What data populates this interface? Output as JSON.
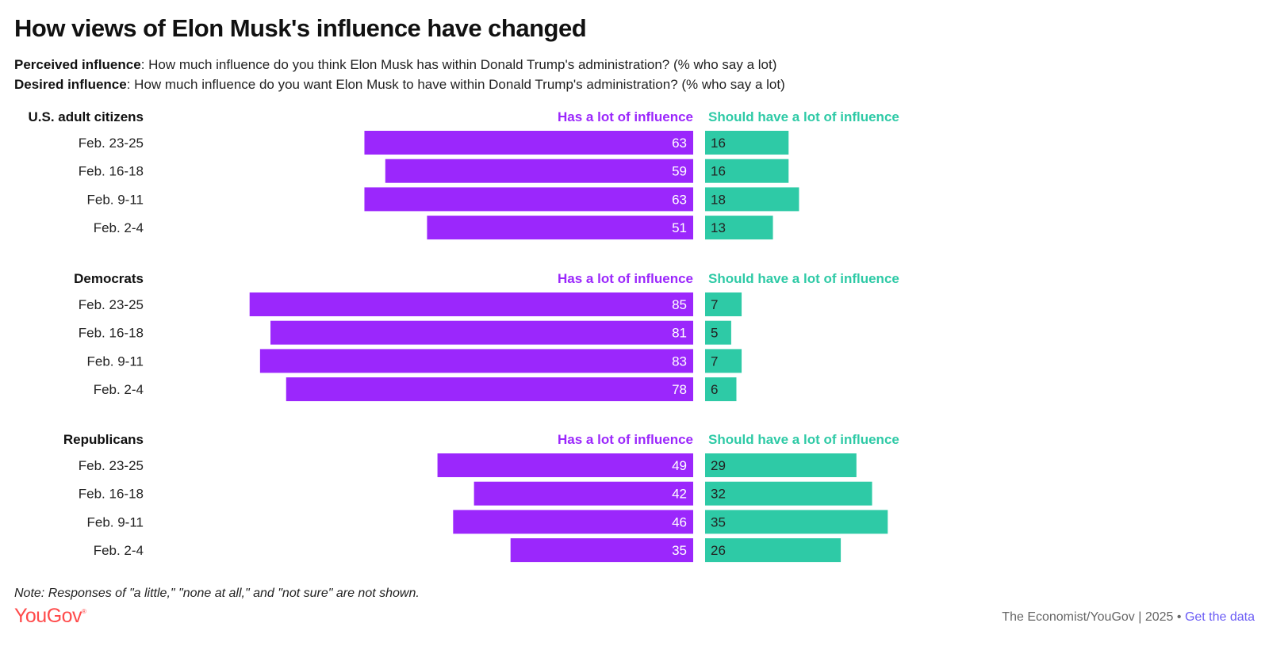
{
  "title": "How views of Elon Musk's influence have changed",
  "subtitle": {
    "perceived_label": "Perceived influence",
    "perceived_text": ": How much influence do you think Elon Musk has within Donald Trump's administration? (% who say a lot)",
    "desired_label": "Desired influence",
    "desired_text": ": How much influence do you want Elon Musk to have within Donald Trump's administration? (% who say a lot)"
  },
  "colors": {
    "has": "#9b27fc",
    "should": "#2ecaa6"
  },
  "chart_data": {
    "type": "bar",
    "orientation": "horizontal-diverging",
    "series_names": [
      "Has a lot of influence",
      "Should have a lot of influence"
    ],
    "xlim": [
      0,
      100
    ],
    "groups": [
      {
        "name": "U.S. adult citizens",
        "categories": [
          "Feb. 23-25",
          "Feb. 16-18",
          "Feb. 9-11",
          "Feb. 2-4"
        ],
        "has": [
          63,
          59,
          63,
          51
        ],
        "should": [
          16,
          16,
          18,
          13
        ]
      },
      {
        "name": "Democrats",
        "categories": [
          "Feb. 23-25",
          "Feb. 16-18",
          "Feb. 9-11",
          "Feb. 2-4"
        ],
        "has": [
          85,
          81,
          83,
          78
        ],
        "should": [
          7,
          5,
          7,
          6
        ]
      },
      {
        "name": "Republicans",
        "categories": [
          "Feb. 23-25",
          "Feb. 16-18",
          "Feb. 9-11",
          "Feb. 2-4"
        ],
        "has": [
          49,
          42,
          46,
          35
        ],
        "should": [
          29,
          32,
          35,
          26
        ]
      }
    ]
  },
  "note": "Note: Responses of \"a little,\" \"none at all,\" and \"not sure\" are not shown.",
  "logo": {
    "text": "YouGov",
    "mark": "®"
  },
  "footer": {
    "source": "The Economist/YouGov | 2025 • ",
    "link": "Get the data"
  }
}
